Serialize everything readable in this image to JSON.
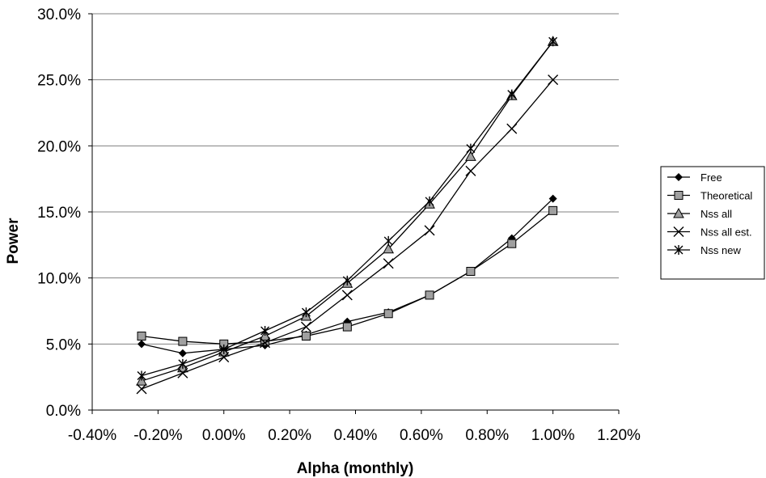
{
  "chart_data": {
    "type": "line",
    "xlabel": "Alpha (monthly)",
    "ylabel": "Power",
    "x": [
      -0.25,
      -0.125,
      0.0,
      0.125,
      0.25,
      0.375,
      0.5,
      0.625,
      0.75,
      0.875,
      1.0
    ],
    "xlim": [
      -0.4,
      1.2
    ],
    "ylim": [
      0,
      30
    ],
    "x_ticks": [
      -0.4,
      -0.2,
      0.0,
      0.2,
      0.4,
      0.6,
      0.8,
      1.0,
      1.2
    ],
    "y_ticks": [
      0,
      5,
      10,
      15,
      20,
      25,
      30
    ],
    "x_tick_labels": [
      "-0.40%",
      "-0.20%",
      "0.00%",
      "0.20%",
      "0.40%",
      "0.60%",
      "0.80%",
      "1.00%",
      "1.20%"
    ],
    "y_tick_labels": [
      "0.0%",
      "5.0%",
      "10.0%",
      "15.0%",
      "20.0%",
      "25.0%",
      "30.0%"
    ],
    "grid": "horizontal",
    "legend_position": "right",
    "series": [
      {
        "name": "Free",
        "marker": "diamond",
        "values": [
          5.0,
          4.3,
          4.6,
          4.9,
          5.7,
          6.7,
          7.4,
          8.7,
          10.5,
          13.0,
          16.0
        ]
      },
      {
        "name": "Theoretical",
        "marker": "square",
        "values": [
          5.6,
          5.2,
          5.0,
          5.2,
          5.6,
          6.3,
          7.3,
          8.7,
          10.5,
          12.6,
          15.1
        ]
      },
      {
        "name": "Nss all",
        "marker": "triangle",
        "values": [
          2.2,
          3.2,
          4.4,
          5.6,
          7.1,
          9.6,
          12.2,
          15.6,
          19.2,
          23.8,
          27.9
        ]
      },
      {
        "name": "Nss all est.",
        "marker": "x",
        "values": [
          1.6,
          2.8,
          4.0,
          5.1,
          6.3,
          8.7,
          11.1,
          13.6,
          18.1,
          21.3,
          25.0
        ]
      },
      {
        "name": "Nss new",
        "marker": "asterisk",
        "values": [
          2.6,
          3.5,
          4.6,
          6.0,
          7.4,
          9.8,
          12.8,
          15.8,
          19.8,
          23.9,
          27.9
        ]
      }
    ]
  }
}
